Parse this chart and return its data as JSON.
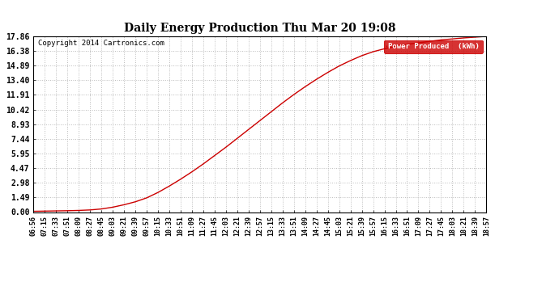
{
  "title": "Daily Energy Production Thu Mar 20 19:08",
  "copyright": "Copyright 2014 Cartronics.com",
  "legend_label": "Power Produced  (kWh)",
  "line_color": "#cc0000",
  "background_color": "#ffffff",
  "grid_color": "#bbbbbb",
  "y_ticks": [
    0.0,
    1.49,
    2.98,
    4.47,
    5.95,
    7.44,
    8.93,
    10.42,
    11.91,
    13.4,
    14.89,
    16.38,
    17.86
  ],
  "x_labels": [
    "06:56",
    "07:15",
    "07:33",
    "07:51",
    "08:09",
    "08:27",
    "08:45",
    "09:03",
    "09:21",
    "09:39",
    "09:57",
    "10:15",
    "10:33",
    "10:51",
    "11:09",
    "11:27",
    "11:45",
    "12:03",
    "12:21",
    "12:39",
    "12:57",
    "13:15",
    "13:33",
    "13:51",
    "14:09",
    "14:27",
    "14:45",
    "15:03",
    "15:21",
    "15:39",
    "15:57",
    "16:15",
    "16:33",
    "16:51",
    "17:09",
    "17:27",
    "17:45",
    "18:03",
    "18:21",
    "18:39",
    "18:57"
  ],
  "ymax": 17.86,
  "ymin": 0.0,
  "curve_points": [
    [
      0,
      0.08
    ],
    [
      1,
      0.1
    ],
    [
      2,
      0.12
    ],
    [
      3,
      0.14
    ],
    [
      4,
      0.17
    ],
    [
      5,
      0.22
    ],
    [
      6,
      0.32
    ],
    [
      7,
      0.5
    ],
    [
      8,
      0.75
    ],
    [
      9,
      1.05
    ],
    [
      10,
      1.45
    ],
    [
      11,
      2.0
    ],
    [
      12,
      2.65
    ],
    [
      13,
      3.35
    ],
    [
      14,
      4.1
    ],
    [
      15,
      4.9
    ],
    [
      16,
      5.75
    ],
    [
      17,
      6.6
    ],
    [
      18,
      7.5
    ],
    [
      19,
      8.4
    ],
    [
      20,
      9.3
    ],
    [
      21,
      10.2
    ],
    [
      22,
      11.1
    ],
    [
      23,
      11.95
    ],
    [
      24,
      12.75
    ],
    [
      25,
      13.5
    ],
    [
      26,
      14.2
    ],
    [
      27,
      14.85
    ],
    [
      28,
      15.4
    ],
    [
      29,
      15.9
    ],
    [
      30,
      16.3
    ],
    [
      31,
      16.6
    ],
    [
      32,
      16.85
    ],
    [
      33,
      17.05
    ],
    [
      34,
      17.2
    ],
    [
      35,
      17.35
    ],
    [
      36,
      17.5
    ],
    [
      37,
      17.6
    ],
    [
      38,
      17.7
    ],
    [
      39,
      17.78
    ],
    [
      40,
      17.86
    ]
  ]
}
